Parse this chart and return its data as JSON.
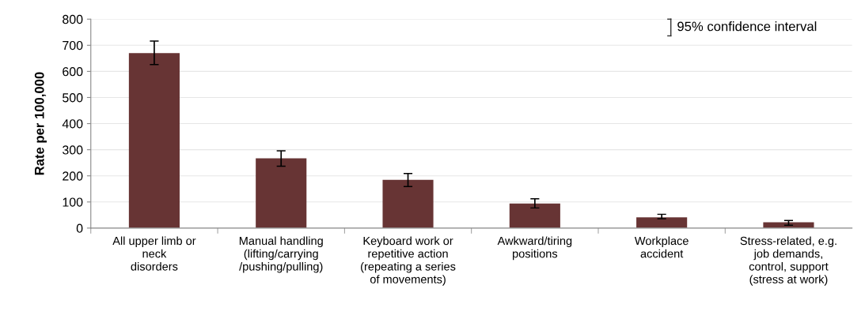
{
  "chart_data": {
    "type": "bar",
    "ylabel": "Rate per 100,000",
    "categories": [
      "All upper limb or\nneck\ndisorders",
      "Manual handling\n(lifting/carrying\n/pushing/pulling)",
      "Keyboard work or\nrepetitive action\n(repeating a series\nof movements)",
      "Awkward/tiring\npositions",
      "Workplace\naccident",
      "Stress-related, e.g.\njob demands,\ncontrol, support\n(stress at work)"
    ],
    "values": [
      670,
      267,
      185,
      94,
      41,
      22
    ],
    "errors": [
      [
        626,
        716
      ],
      [
        237,
        296
      ],
      [
        159,
        209
      ],
      [
        77,
        112
      ],
      [
        36,
        53
      ],
      [
        11,
        29
      ]
    ],
    "color": "#673434",
    "ylim": [
      0,
      800
    ],
    "yticks": [
      0,
      100,
      200,
      300,
      400,
      500,
      600,
      700,
      800
    ],
    "grid": "y",
    "annotations": [
      "95% confidence interval"
    ]
  }
}
